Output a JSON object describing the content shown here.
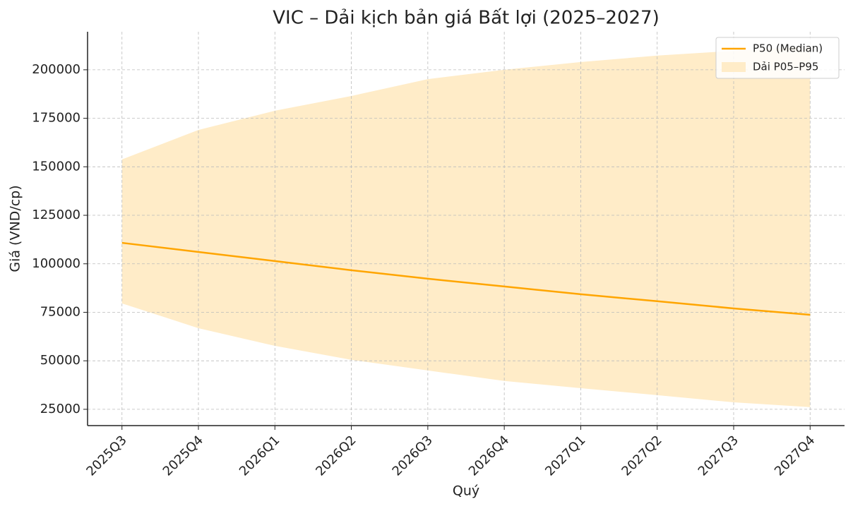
{
  "chart_data": {
    "type": "line",
    "title": "VIC – Dải kịch bản giá Bất lợi (2025–2027)",
    "x_label": "Quý",
    "y_label": "Giá (VND/cp)",
    "categories": [
      "2025Q3",
      "2025Q4",
      "2026Q1",
      "2026Q2",
      "2026Q3",
      "2026Q4",
      "2027Q1",
      "2027Q2",
      "2027Q3",
      "2027Q4"
    ],
    "series": [
      {
        "name": "P50 (Median)",
        "color": "#ffa500",
        "values": [
          110800,
          106100,
          101400,
          96700,
          92300,
          88300,
          84300,
          80700,
          77000,
          73700
        ]
      }
    ],
    "band": {
      "name": "Dải P05–P95",
      "color": "#ffecc8",
      "lower": [
        79600,
        66800,
        57700,
        50500,
        45000,
        39600,
        35900,
        32300,
        28600,
        26100
      ],
      "upper": [
        153800,
        169000,
        178900,
        186500,
        195200,
        200000,
        204000,
        207300,
        209800,
        212000
      ]
    },
    "ylim": [
      16600,
      219600
    ],
    "yticks": [
      25000,
      50000,
      75000,
      100000,
      125000,
      150000,
      175000,
      200000
    ],
    "grid": true,
    "legend": "upper right"
  }
}
